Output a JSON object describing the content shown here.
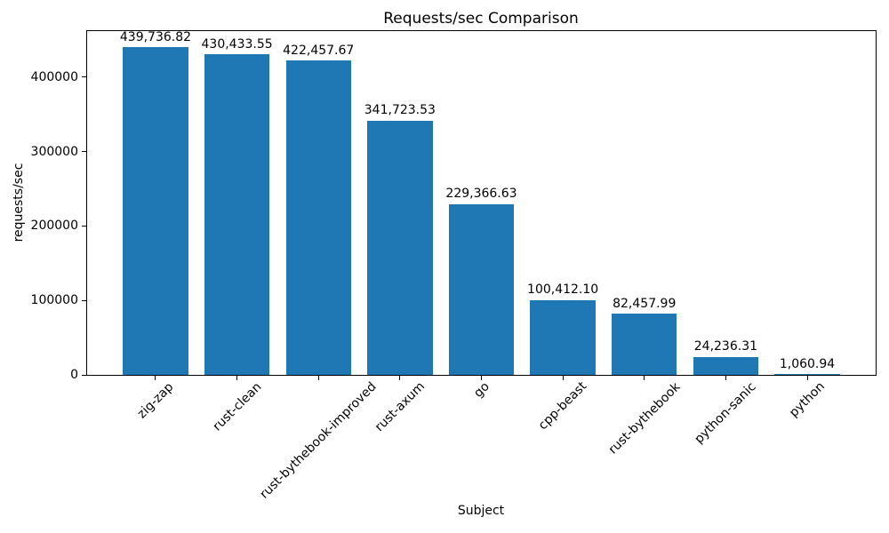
{
  "chart_data": {
    "type": "bar",
    "title": "Requests/sec Comparison",
    "xlabel": "Subject",
    "ylabel": "requests/sec",
    "categories": [
      "zig-zap",
      "rust-clean",
      "rust-bythebook-improved",
      "rust-axum",
      "go",
      "cpp-beast",
      "rust-bythebook",
      "python-sanic",
      "python"
    ],
    "values": [
      439736.82,
      430433.55,
      422457.67,
      341723.53,
      229366.63,
      100412.1,
      82457.99,
      24236.31,
      1060.94
    ],
    "value_labels": [
      "439,736.82",
      "430,433.55",
      "422,457.67",
      "341,723.53",
      "229,366.63",
      "100,412.10",
      "82,457.99",
      "24,236.31",
      "1,060.94"
    ],
    "yticks": [
      0,
      100000,
      200000,
      300000,
      400000
    ],
    "ytick_labels": [
      "0",
      "100000",
      "200000",
      "300000",
      "400000"
    ],
    "ylim": [
      0,
      461723.66
    ],
    "bar_color": "#1f77b4",
    "axis_color": "#000000",
    "background_color": "#ffffff",
    "bar_width_fraction": 0.8,
    "x_margin_units": 0.44,
    "xtick_rotation_deg": 45,
    "grid": false,
    "legend": null
  }
}
